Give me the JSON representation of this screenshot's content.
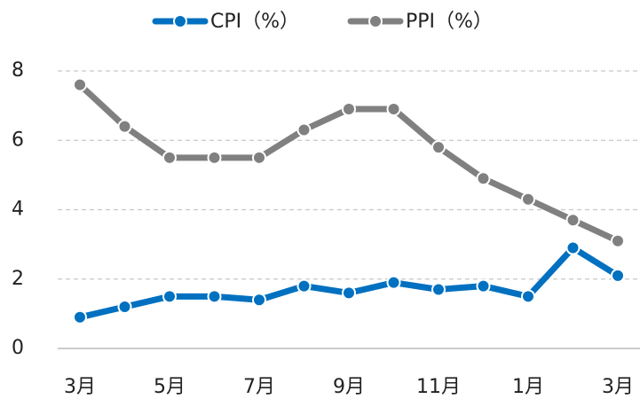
{
  "chart_data": {
    "type": "line",
    "categories": [
      "3月",
      null,
      "5月",
      null,
      "7月",
      null,
      "9月",
      null,
      "11月",
      null,
      "1月",
      null,
      "3月"
    ],
    "series": [
      {
        "name": "CPI（%）",
        "color": "#0070c0",
        "values": [
          0.9,
          1.2,
          1.5,
          1.5,
          1.4,
          1.8,
          1.6,
          1.9,
          1.7,
          1.8,
          1.5,
          2.9,
          2.1
        ]
      },
      {
        "name": "PPI（%）",
        "color": "#808080",
        "values": [
          7.6,
          6.4,
          5.5,
          5.5,
          5.5,
          6.3,
          6.9,
          6.9,
          5.8,
          4.9,
          4.3,
          3.7,
          3.1
        ]
      }
    ],
    "ylim": [
      0,
      8
    ],
    "yticks": [
      0,
      2,
      4,
      6,
      8
    ],
    "grid": true,
    "legend": "top"
  }
}
